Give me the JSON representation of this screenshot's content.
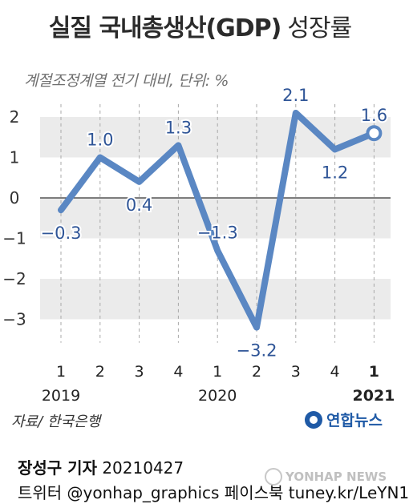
{
  "header": {
    "title": "실질 국내총생산(GDP)",
    "title_suffix": "성장률",
    "subtitle": "계절조정계열 전기 대비, 단위: %"
  },
  "chart_data": {
    "type": "line",
    "title": "실질 국내총생산(GDP) 성장률",
    "subtitle": "계절조정계열 전기 대비, 단위: %",
    "x": [
      "1",
      "2",
      "3",
      "4",
      "1",
      "2",
      "3",
      "4",
      "1"
    ],
    "year_labels": [
      {
        "label": "2019",
        "index": 0
      },
      {
        "label": "2020",
        "index": 4
      },
      {
        "label": "2021",
        "index": 8
      }
    ],
    "series": [
      {
        "values": [
          -0.3,
          1.0,
          0.4,
          1.3,
          -1.3,
          -3.2,
          2.1,
          1.2,
          1.6
        ],
        "labels": [
          "−0.3",
          "1.0",
          "0.4",
          "1.3",
          "−1.3",
          "−3.2",
          "2.1",
          "1.2",
          "1.6"
        ]
      }
    ],
    "ylim": [
      -3.5,
      2.2
    ],
    "yticks": [
      2,
      1,
      0,
      -1,
      -2,
      -3
    ],
    "ytick_labels": [
      "2",
      "1",
      "0",
      "−1",
      "−2",
      "−3"
    ],
    "highlight_index": 8,
    "grid": true,
    "colors": {
      "line": "#5a87c3",
      "band": "#ebebeb",
      "label": "#2f5597",
      "zero_line": "#333333"
    }
  },
  "footer": {
    "source": "자료/ 한국은행",
    "brand": "연합뉴스",
    "reporter": "장성구 기자",
    "date": "20210427",
    "social": "트위터 @yonhap_graphics  페이스북 tuney.kr/LeYN1",
    "watermark": "YONHAP NEWS"
  }
}
